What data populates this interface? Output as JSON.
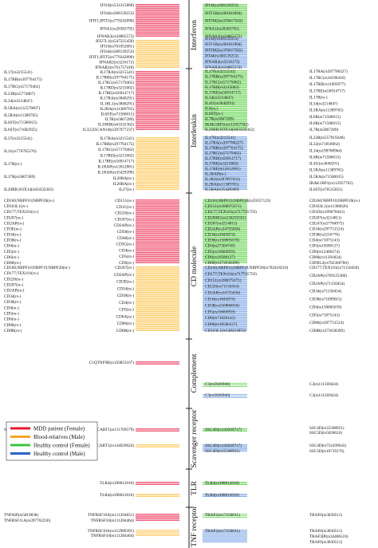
{
  "axis": {
    "sections": [
      {
        "label": "Interferon"
      },
      {
        "label": "Interleukin"
      },
      {
        "label": "CD molecule"
      },
      {
        "label": "Complement"
      },
      {
        "label": "Scavenger receptor"
      },
      {
        "label": "TLR"
      },
      {
        "label": "TNF receptor"
      }
    ]
  },
  "legend": {
    "items": [
      {
        "label": "MDD patient (Female)",
        "color": "#e8182e"
      },
      {
        "label": "Blood-relatives (Male)",
        "color": "#f5a623"
      },
      {
        "label": "Healthy control (Female)",
        "color": "#3ec43e"
      },
      {
        "label": "Healthy control (Male)",
        "color": "#2a62c9"
      }
    ]
  },
  "groups": {
    "ifn_red": {
      "color": "#f2607e",
      "left_near": [
        "IFI10(rs531215868)",
        "IFI44(rs368139253)",
        "IFIT1;IFIT5(rs779242890)",
        "IFNA1(rs28383795)",
        "IFNAR2(rs34865572)"
      ],
      "left_far": []
    },
    "ifn_orange": {
      "color": "#ffd073",
      "left_near": [
        "IFI27L1(rs547225458)",
        "IFI10(rs761052681)",
        "IFI44(rs368139253)",
        "IFIT1;IFIT5(rs779242890)",
        "IFNAR2(rs3216172)",
        "IFNAR2(rs761757418)"
      ],
      "left_far": []
    },
    "ifn_green": {
      "color": "#7fdc6f",
      "right_near": [
        "IFI44(rs368139253)",
        "IFIT1B(rs200301904)",
        "IFITM2(rs370617502)",
        "IFNA1(rs28383795)",
        "IFNAR2(rs34865572)"
      ],
      "right_far": []
    },
    "ifn_blue": {
      "color": "#8fb4ea",
      "right_near": [
        "IFI44(rs368139253)",
        "IFIT1B(rs200301904)",
        "IFITM2(rs370617502)",
        "IFI44(rs368139253)",
        "IFNAR2(rs3216172)",
        "IFNAR2(rs34865572)"
      ],
      "right_far": []
    },
    "il_red": {
      "color": "#f2607e",
      "left_near": [
        "IL17RA(rs3215541)",
        "IL17RB(rs397764175)",
        "IL17RC(rs57179462)",
        "IL17RD(rs3215002)",
        "IL17RE(rs56914717)",
        "IL17RA(rs3840291)",
        "IL1RL1(rs3840291)",
        "IL2RA(rs11389765)",
        "IL6ST(rs71586015)",
        "IL7R(rs5867289)",
        "IL20RB(rs63332362)",
        "IL32;ZSCAN10(rs397977237)"
      ],
      "left_far": [
        "IL17(rs3215541)",
        "IL17RB(rs397764175)",
        "IL17RC(rs57179462)",
        "IL23R(rs5774867)",
        "IL34(rs3214847)",
        "IL5RA(rs112570607)",
        "IL5RA(rs11389765)",
        "IL6ST(rs71586015)",
        "IL6ST(rs71602925)"
      ]
    },
    "il_orange": {
      "color": "#ffd073",
      "left_near": [
        "IL17RA(rs3215541)",
        "IL17RB(rs397764175)",
        "IL17RC(rs57179462)",
        "IL17RD(rs3215002)",
        "IL17RE(rs56914717)",
        "IL1RAP(rs12612801)",
        "IL1RAP(rs35429399)",
        "IL20RA(rs-)",
        "IL20RA(rs-)",
        "IL27(rs-)"
      ],
      "left_far": [
        "IL37(rs3215541)",
        "IL31(rs776705276)",
        "IL17R(rs-)",
        "IL17R(rs5867289)",
        "IL20RB;SOX14(rs63332362)"
      ]
    },
    "il_green": {
      "color": "#7fdc6f",
      "right_near": [
        "IL17F(rs3215541)",
        "IL17RB(rs397764175)",
        "IL17RC(rs57179462)",
        "IL17RD(rs3215002)",
        "IL17RE(rs56914717)",
        "IL34(rs3214847)",
        "IL4I1(rs3840291)",
        "IL6(rs-)",
        "IL6ST(rs-)",
        "IL7R(rs5867289)",
        "IRAK1BP1(rs112957702)",
        "IL20RB;SOX14(rs63332362)"
      ],
      "right_far": [
        "IL17RA(rs397780227)",
        "IL17RC(rs34198416)",
        "IL17RD(rs11092977)",
        "IL17RE(rs56914717)",
        "IL17R(rs-)",
        "IL34(rs3214847)",
        "IL5RA(rs11389765)",
        "IL6R(rs71586015)",
        "IL6R(rs71586015)",
        "IL7R(rs5867289)"
      ]
    },
    "il_blue": {
      "color": "#8fb4ea",
      "right_near": [
        "IL17F(rs3215541)",
        "IL17RA(rs397780227)",
        "IL17RB(rs397764175)",
        "IL17RC(rs57179462)",
        "IL17RD(rs56914717)",
        "IL17RE(rs3215002)",
        "IL17RE(rs12612801)",
        "IL1RAP(rs-)",
        "IL1R1(rs397897631)",
        "IL2RA(rs11389765)",
        "IL5RA(rs35420309)"
      ],
      "right_far": [
        "IL23R(rs557919248)",
        "IL32(rs71818062)",
        "IL34(rs199708964)",
        "IL6R(rs71586015)",
        "IL4I1(rs3840291)",
        "IL5RA(rs11389765)",
        "IL5RA(rs71586015)",
        "IRAK1BP1(rs112957702)",
        "IL6ST(rs76515851)"
      ]
    },
    "cd_red": {
      "color": "#f2607e",
      "left_near": [
        "CD151(rs-)",
        "CD1C(rs-)",
        "CD226(rs-)",
        "CD207(rs-)",
        "CD2AP(rs-)",
        "CD58(rs-)",
        "CD48(rs-)",
        "CD3G(rs-)",
        "CD4(rs-)",
        "CD5(rs-)",
        "CD6(rs-)"
      ],
      "left_far": [
        "CD160;NBPF10;NBPF20(rs-)",
        "CD163L1(rs-)",
        "CD177;TEX101(rs-)",
        "CD207(rs-)",
        "CD2AP(rs-)",
        "CD3E(rs-)",
        "CD34(rs-)",
        "CD38(rs-)",
        "CD4(rs-)",
        "CD5(rs-)",
        "CD6(rs-)",
        "CD86(rs-)"
      ]
    },
    "cd_orange": {
      "color": "#ffd073",
      "left_near": [
        "CD207(rs-)",
        "CD2AP(rs-)",
        "CD3E(rs-)",
        "CD34(rs-)",
        "CD38(rs-)",
        "CD4(rs-)",
        "CD5(rs-)",
        "CD6A(rs-)",
        "CD86(rs-)",
        "CD8B(rs-)"
      ],
      "left_far": [
        "CD160;NBPF10;NBPF19;NBPF20(rs-)",
        "CD177;TEX101(rs-)",
        "CD226(rs-)",
        "CD207(rs-)",
        "CD2AP(rs-)",
        "CD34(rs-)",
        "CD38(rs-)",
        "CD4(rs-)",
        "CD5(rs-)",
        "CD6(rs-)",
        "CD86(rs-)",
        "CD8B(rs-)"
      ]
    },
    "cd_green": {
      "color": "#7fdc6f",
      "right_near": [
        "CD160;NBPF10;NBPF20(rs59357123)",
        "CD151(rs398075671)",
        "CD177;TEX101(rs717745759)",
        "CD200R1(rs530259331)",
        "CD207(rs3214811)",
        "CD2AP(rs34735056)",
        "CD34(rs3043874)",
        "CD38(rs150005670)",
        "CD4(rs57304749)",
        "CD5(rs10684959)",
        "CD6(rs10580127)",
        "CD86(rs373630399)"
      ],
      "right_far": [
        "CD160;NBPF10;NBPF20(rs-)",
        "CD163L1(rs11368626)",
        "CD1D(rs199678441)",
        "CD207(rs3214811)",
        "CD247(rs57784975)",
        "CD34(rs397751524)",
        "CD38(rs3216776)",
        "CD4(rs71075143)",
        "CD5(rs10580127)",
        "CD6(rs12406274)",
        "CD80(rs11391824)",
        "CD99L2(rs782369700)"
      ]
    },
    "cd_blue": {
      "color": "#8fb4ea",
      "right_near": [
        "CD160;NBPF10;NBPF19;NBPF20(rs782418210)",
        "CD177;TEX101(rs717745759)",
        "CD151(rs398075671)",
        "CD226(rs71150454)",
        "CD2AP(rs34735056)",
        "CD34(rs3043874)",
        "CD38(rs556886058)",
        "CD5(rs10684959)",
        "CD6(rs71020143)",
        "CD86(rs10580127)",
        "CD163L1(rs148414953)"
      ],
      "right_far": [
        "CD177;TEX101(rs71150450)",
        "CD2AP(rs769125300)",
        "CD2AP(rs71150454)",
        "CD34(rs71150454)",
        "CD38(rs71099015)",
        "CD4(rs150005670)",
        "CD5(rs71075143)",
        "CD86(rs397751524)",
        "CD8B(rs373630399)"
      ]
    },
    "comp_red": {
      "color": "#f2607e",
      "left_near": [
        "C1QTNF9B(rs150853167)"
      ],
      "left_far": []
    },
    "comp_green": {
      "color": "#7fdc6f",
      "right_near": [
        "C3(rs5826946)"
      ],
      "right_far": [
        "C3(rs111569424)"
      ]
    },
    "comp_blue": {
      "color": "#8fb4ea",
      "right_near": [
        "C3(rs5826946)"
      ],
      "right_far": [
        "C3(rs111569424)"
      ]
    },
    "sr_red": {
      "color": "#f2607e",
      "left_near": [
        "SCART1(rs111769579)"
      ],
      "left_far": [
        "SCARF2;SCARF2(rs5844418)"
      ]
    },
    "sr_orange": {
      "color": "#ffd073",
      "left_near": [
        "SCART1(rs144029024)"
      ],
      "left_far": []
    },
    "sr_green": {
      "color": "#7fdc6f",
      "right_near": [
        "SSC4D(rs140509717)"
      ],
      "right_far": [
        "SSC4D(rs35508921)",
        "SSC5D(rs5828624)"
      ]
    },
    "sr_blue": {
      "color": "#8fb4ea",
      "right_near": [
        "SSC4D(rs140509717)",
        "SSC4D(rs35508921)"
      ],
      "right_far": [
        "SSC4D(rs754109043)",
        "SSC5D(rs10719176)"
      ]
    },
    "tlr_red": {
      "color": "#f2607e",
      "left_near": [
        "TLR4(rs398012010)"
      ],
      "left_far": []
    },
    "tlr_orange": {
      "color": "#ffd073",
      "left_near": [
        "TLR4(rs398012010)"
      ],
      "left_far": []
    },
    "tlr_green": {
      "color": "#7fdc6f",
      "right_near": [
        "TLR4(rs398012010)"
      ],
      "right_far": []
    },
    "tlr_blue": {
      "color": "#8fb4ea",
      "right_near": [
        "TLR4(rs398012010)"
      ],
      "right_far": []
    },
    "tnf_red": {
      "color": "#f2607e",
      "left_near": [
        "TNFRSF10A(rs111294851)",
        "TNFRSF10(rs111284464)"
      ],
      "left_far": [
        "TNFAIP(rs5819838)",
        "TNFRSF11A(rs397702236)"
      ]
    },
    "tnf_orange": {
      "color": "#ffd073",
      "left_near": [
        "TNFRSF10A(rs112989391)",
        "TNFRSF10(rs111284464)"
      ],
      "left_far": []
    },
    "tnf_green": {
      "color": "#7fdc6f",
      "right_near": [
        "TRAF2(rs17250631)"
      ],
      "right_far": [
        "TRAF6(rs3830511)"
      ]
    },
    "tnf_blue": {
      "color": "#8fb4ea",
      "right_near": [
        "TRAF2(rs17250631)"
      ],
      "right_far": [
        "TRAF6(rs3830511)",
        "TRAF3IP(rs34406510)",
        "TRAF6(rs3830511)"
      ]
    }
  }
}
